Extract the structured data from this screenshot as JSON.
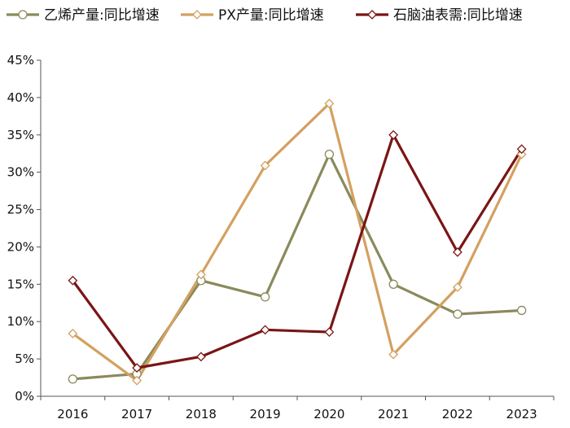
{
  "chart_data": {
    "type": "line",
    "title": "",
    "xlabel": "",
    "ylabel": "",
    "x": [
      "2016",
      "2017",
      "2018",
      "2019",
      "2020",
      "2021",
      "2022",
      "2023"
    ],
    "yticks": [
      "0%",
      "5%",
      "10%",
      "15%",
      "20%",
      "25%",
      "30%",
      "35%",
      "40%",
      "45%"
    ],
    "ylim": [
      0,
      45
    ],
    "grid": false,
    "legend_position": "top",
    "series": [
      {
        "name": "乙烯产量:同比增速",
        "color": "#8a8a5c",
        "marker": "circle",
        "values": [
          2.3,
          3.0,
          15.5,
          13.3,
          32.4,
          15.0,
          11.0,
          11.5
        ]
      },
      {
        "name": "PX产量:同比增速",
        "color": "#d4a060",
        "marker": "diamond",
        "values": [
          8.4,
          2.1,
          16.3,
          30.9,
          39.2,
          5.6,
          14.6,
          32.4
        ]
      },
      {
        "name": "石脑油表需:同比增速",
        "color": "#7a1515",
        "marker": "diamond",
        "values": [
          15.5,
          3.8,
          5.3,
          8.9,
          8.6,
          35.0,
          19.3,
          33.1
        ]
      }
    ]
  }
}
